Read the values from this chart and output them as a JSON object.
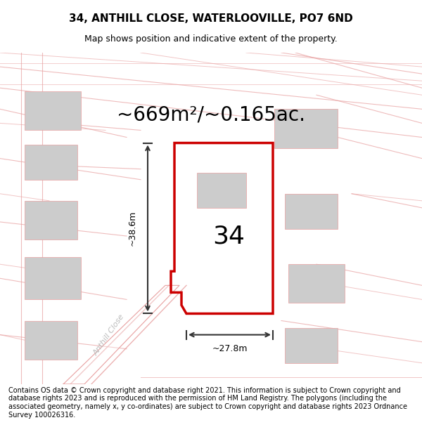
{
  "title_line1": "34, ANTHILL CLOSE, WATERLOOVILLE, PO7 6ND",
  "title_line2": "Map shows position and indicative extent of the property.",
  "area_text": "~669m²/~0.165ac.",
  "label_34": "34",
  "label_height": "~38.6m",
  "label_width": "~27.8m",
  "street_label": "Anthill Close",
  "footer_text": "Contains OS data © Crown copyright and database right 2021. This information is subject to Crown copyright and database rights 2023 and is reproduced with the permission of HM Land Registry. The polygons (including the associated geometry, namely x, y co-ordinates) are subject to Crown copyright and database rights 2023 Ordnance Survey 100026316.",
  "bg_color": "#f5f0f0",
  "map_bg": "#f9f5f5",
  "plot_color": "#cc0000",
  "plot_fill": "#f5f0f0",
  "building_color": "#cccccc",
  "road_line_color": "#e8a0a0",
  "dim_line_color": "#333333",
  "title_fontsize": 11,
  "subtitle_fontsize": 9,
  "area_fontsize": 20,
  "label_fontsize": 26,
  "footer_fontsize": 7
}
